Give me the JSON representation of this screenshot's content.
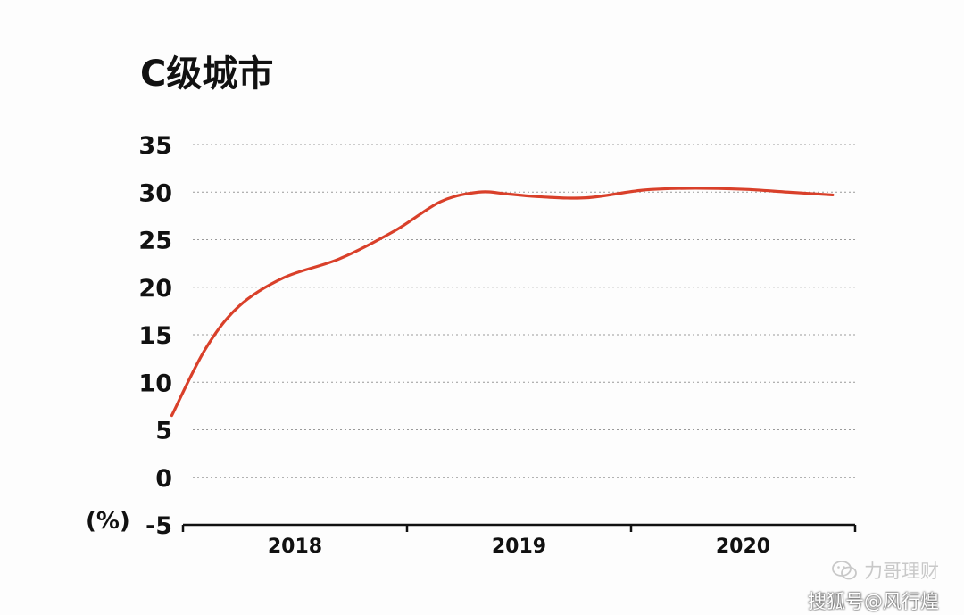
{
  "chart_data": {
    "type": "line",
    "title": "C级城市",
    "unit_label": "(%)",
    "ylim": [
      -5,
      35
    ],
    "yticks": [
      "35",
      "30",
      "25",
      "20",
      "15",
      "10",
      "5",
      "0",
      "-5"
    ],
    "ytick_values": [
      35,
      30,
      25,
      20,
      15,
      10,
      5,
      0,
      -5
    ],
    "categories": [
      "2018",
      "2019",
      "2020"
    ],
    "grid": true,
    "line_color": "#d9402a",
    "series": [
      {
        "x": [
          2017.45,
          2017.6,
          2017.75,
          2017.95,
          2018.2,
          2018.45,
          2018.65,
          2018.82,
          2018.95,
          2019.1,
          2019.3,
          2019.55,
          2019.75,
          2020.0,
          2020.2,
          2020.4
        ],
        "values": [
          6.5,
          13.5,
          18.0,
          21.0,
          23.0,
          26.0,
          29.0,
          30.0,
          29.8,
          29.5,
          29.4,
          30.2,
          30.4,
          30.3,
          30.0,
          29.7
        ]
      }
    ]
  },
  "watermark": {
    "line1": "力哥理财",
    "line2": "搜狐号@风行煌"
  }
}
